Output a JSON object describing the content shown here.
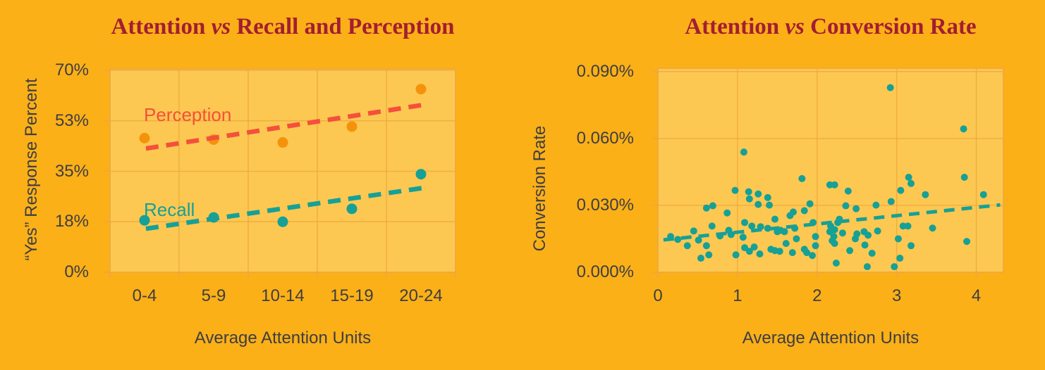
{
  "colors": {
    "page_background": "#FBB017",
    "plot_background": "#FCC852",
    "grid": "#F0A83C",
    "title": "#A31D33",
    "axis_text": "#3E3D43",
    "teal": "#16A096",
    "orange": "#F5920B",
    "coral": "#F4503B"
  },
  "chart_data": [
    {
      "type": "scatter",
      "title": "Attention vs Recall and Perception",
      "title_parts": {
        "pre": "Attention ",
        "italic": "vs",
        "post": " Recall and Perception"
      },
      "xlabel": "Average Attention Units",
      "ylabel": "“Yes” Response Percent",
      "categories": [
        "0-4",
        "5-9",
        "10-14",
        "15-19",
        "20-24"
      ],
      "yticks": [
        {
          "v": 0,
          "label": "0%"
        },
        {
          "v": 17.5,
          "label": "18%"
        },
        {
          "v": 35,
          "label": "35%"
        },
        {
          "v": 52.5,
          "label": "53%"
        },
        {
          "v": 70,
          "label": "70%"
        }
      ],
      "ylim": [
        0,
        70.5
      ],
      "vgrid": [
        1,
        2,
        3,
        4
      ],
      "grid": "on",
      "legend_position": "inline-labels",
      "series": [
        {
          "name": "Perception",
          "point_color": "#F5920B",
          "trend_color": "#F4503B",
          "values": [
            46.5,
            46,
            45,
            50.5,
            63.5
          ],
          "trend": {
            "x1": 0.52,
            "y1": 42.9,
            "x2": 4.52,
            "y2": 58.0
          }
        },
        {
          "name": "Recall",
          "point_color": "#16A096",
          "trend_color": "#16A096",
          "values": [
            18,
            19,
            17.5,
            22,
            34
          ],
          "trend": {
            "x1": 0.52,
            "y1": 15.1,
            "x2": 4.52,
            "y2": 29.2
          }
        }
      ]
    },
    {
      "type": "scatter",
      "title": "Attention vs Conversion Rate",
      "title_parts": {
        "pre": "Attention ",
        "italic": "vs",
        "post": " Conversion Rate"
      },
      "xlabel": "Average Attention Units",
      "ylabel": "Conversion Rate",
      "xticks": [
        {
          "v": 0,
          "label": "0"
        },
        {
          "v": 1,
          "label": "1"
        },
        {
          "v": 2,
          "label": "2"
        },
        {
          "v": 3,
          "label": "3"
        },
        {
          "v": 4,
          "label": "4"
        }
      ],
      "yticks": [
        {
          "v": 0,
          "label": "0.000%"
        },
        {
          "v": 0.03,
          "label": "0.030%"
        },
        {
          "v": 0.06,
          "label": "0.060%"
        },
        {
          "v": 0.09,
          "label": "0.090%"
        }
      ],
      "xlim": [
        0,
        4.34
      ],
      "ylim": [
        0,
        0.0915
      ],
      "vgrid": [
        1,
        2,
        3,
        4
      ],
      "grid": "on",
      "point_color": "#16A096",
      "trend": {
        "x1": 0.07,
        "y1": 0.0145,
        "x2": 4.3,
        "y2": 0.0302,
        "color": "#16A096"
      },
      "points": [
        [
          0.16,
          0.016
        ],
        [
          0.25,
          0.0147
        ],
        [
          0.37,
          0.0119
        ],
        [
          0.45,
          0.0185
        ],
        [
          0.51,
          0.0144
        ],
        [
          0.54,
          0.0063
        ],
        [
          0.61,
          0.0288
        ],
        [
          0.61,
          0.0119
        ],
        [
          0.64,
          0.0078
        ],
        [
          0.68,
          0.0207
        ],
        [
          0.69,
          0.0298
        ],
        [
          0.78,
          0.0163
        ],
        [
          0.87,
          0.0266
        ],
        [
          0.89,
          0.0188
        ],
        [
          0.92,
          0.0169
        ],
        [
          0.97,
          0.0367
        ],
        [
          0.98,
          0.0078
        ],
        [
          1.07,
          0.0157
        ],
        [
          1.08,
          0.0539
        ],
        [
          1.09,
          0.0223
        ],
        [
          1.09,
          0.011
        ],
        [
          1.14,
          0.0361
        ],
        [
          1.15,
          0.0329
        ],
        [
          1.15,
          0.0094
        ],
        [
          1.18,
          0.0207
        ],
        [
          1.21,
          0.0113
        ],
        [
          1.26,
          0.0351
        ],
        [
          1.26,
          0.0304
        ],
        [
          1.28,
          0.0082
        ],
        [
          1.29,
          0.0204
        ],
        [
          1.38,
          0.0335
        ],
        [
          1.38,
          0.0197
        ],
        [
          1.4,
          0.0301
        ],
        [
          1.42,
          0.0103
        ],
        [
          1.47,
          0.0238
        ],
        [
          1.47,
          0.0097
        ],
        [
          1.5,
          0.0182
        ],
        [
          1.53,
          0.0094
        ],
        [
          1.54,
          0.0188
        ],
        [
          1.59,
          0.0182
        ],
        [
          1.61,
          0.0129
        ],
        [
          1.66,
          0.0254
        ],
        [
          1.69,
          0.0088
        ],
        [
          1.7,
          0.027
        ],
        [
          1.72,
          0.0197
        ],
        [
          1.74,
          0.015
        ],
        [
          1.81,
          0.042
        ],
        [
          1.84,
          0.0276
        ],
        [
          1.84,
          0.0103
        ],
        [
          1.87,
          0.0088
        ],
        [
          1.91,
          0.0307
        ],
        [
          1.94,
          0.0075
        ],
        [
          1.95,
          0.0223
        ],
        [
          1.98,
          0.016
        ],
        [
          1.98,
          0.0119
        ],
        [
          2.16,
          0.0392
        ],
        [
          2.16,
          0.0182
        ],
        [
          2.17,
          0.0207
        ],
        [
          2.19,
          0.0141
        ],
        [
          2.21,
          0.016
        ],
        [
          2.22,
          0.0392
        ],
        [
          2.22,
          0.0191
        ],
        [
          2.22,
          0.0129
        ],
        [
          2.24,
          0.0041
        ],
        [
          2.26,
          0.0223
        ],
        [
          2.28,
          0.0238
        ],
        [
          2.32,
          0.0176
        ],
        [
          2.36,
          0.0298
        ],
        [
          2.39,
          0.0364
        ],
        [
          2.41,
          0.0097
        ],
        [
          2.48,
          0.015
        ],
        [
          2.49,
          0.0285
        ],
        [
          2.5,
          0.0172
        ],
        [
          2.59,
          0.0182
        ],
        [
          2.6,
          0.0122
        ],
        [
          2.63,
          0.0025
        ],
        [
          2.64,
          0.0166
        ],
        [
          2.69,
          0.0085
        ],
        [
          2.74,
          0.0301
        ],
        [
          2.76,
          0.0185
        ],
        [
          2.92,
          0.0828
        ],
        [
          2.93,
          0.0317
        ],
        [
          2.97,
          0.0025
        ],
        [
          3.02,
          0.015
        ],
        [
          3.04,
          0.0063
        ],
        [
          3.05,
          0.0367
        ],
        [
          3.08,
          0.0207
        ],
        [
          3.14,
          0.0207
        ],
        [
          3.15,
          0.0426
        ],
        [
          3.18,
          0.0398
        ],
        [
          3.18,
          0.0119
        ],
        [
          3.36,
          0.0348
        ],
        [
          3.45,
          0.0198
        ],
        [
          3.84,
          0.0643
        ],
        [
          3.85,
          0.0426
        ],
        [
          3.88,
          0.0138
        ],
        [
          4.09,
          0.0348
        ]
      ]
    }
  ]
}
